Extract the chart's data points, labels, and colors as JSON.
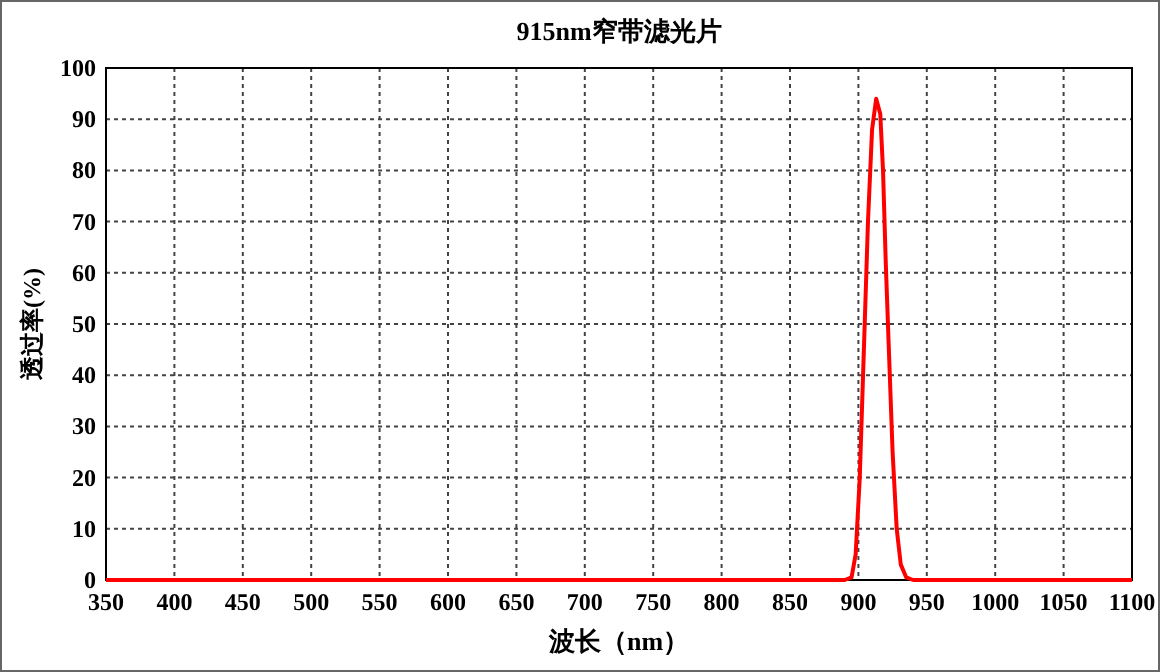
{
  "chart_data": {
    "type": "line",
    "title": "915nm窄带滤光片",
    "xlabel": "波长（nm）",
    "ylabel": "透过率(%)",
    "x": [
      350,
      890,
      895,
      898,
      901,
      904,
      907,
      910,
      913,
      916,
      918,
      920,
      922,
      925,
      928,
      931,
      935,
      940,
      1100
    ],
    "series": [
      {
        "color": "#ff0000",
        "values": [
          0,
          0,
          0.5,
          5,
          20,
          45,
          70,
          88,
          94,
          91,
          80,
          62,
          47,
          25,
          10,
          3,
          0.5,
          0,
          0
        ]
      }
    ],
    "xlim": [
      350,
      1100
    ],
    "ylim": [
      0,
      100
    ],
    "xticks": [
      350,
      400,
      450,
      500,
      550,
      600,
      650,
      700,
      750,
      800,
      850,
      900,
      950,
      1000,
      1050,
      1100
    ],
    "yticks": [
      0,
      10,
      20,
      30,
      40,
      50,
      60,
      70,
      80,
      90,
      100
    ],
    "grid": true,
    "marker": "none",
    "line_style": "solid"
  }
}
